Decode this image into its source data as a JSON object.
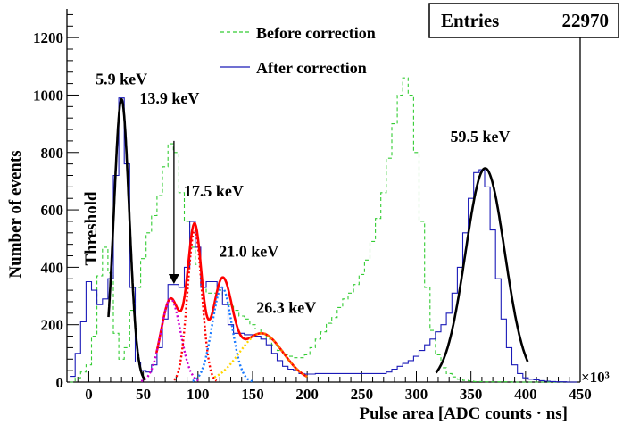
{
  "chart_data": {
    "type": "line",
    "title": "",
    "xlabel": "Pulse area [ADC counts · ns]",
    "ylabel": "Number of events",
    "x_multiplier": "×10³",
    "xlim": [
      -20,
      450
    ],
    "ylim": [
      0,
      1300
    ],
    "xticks": [
      0,
      50,
      100,
      150,
      200,
      250,
      300,
      350,
      400,
      450
    ],
    "yticks": [
      0,
      200,
      400,
      600,
      800,
      1000,
      1200
    ],
    "stats": {
      "label": "Entries",
      "value": "22970"
    },
    "legend": [
      {
        "name": "Before correction",
        "style": "dashed",
        "color": "#33cc33"
      },
      {
        "name": "After correction",
        "style": "solid",
        "color": "#1a1ab8"
      }
    ],
    "threshold_label": "Threshold",
    "annotations": [
      {
        "text": "5.9 keV",
        "x": 30,
        "y": 1000
      },
      {
        "text": "13.9 keV",
        "x": 78,
        "y": 830
      },
      {
        "text": "17.5 keV",
        "x": 98,
        "y": 610
      },
      {
        "text": "21.0 keV",
        "x": 122,
        "y": 400
      },
      {
        "text": "26.3 keV",
        "x": 158,
        "y": 210
      },
      {
        "text": "59.5 keV",
        "x": 365,
        "y": 800
      }
    ],
    "series": [
      {
        "name": "Before correction",
        "x": [
          -15,
          -10,
          -5,
          0,
          5,
          10,
          15,
          20,
          25,
          30,
          35,
          40,
          45,
          50,
          55,
          60,
          65,
          70,
          75,
          80,
          85,
          90,
          95,
          100,
          105,
          110,
          115,
          120,
          125,
          130,
          135,
          140,
          145,
          150,
          155,
          160,
          165,
          170,
          175,
          180,
          185,
          190,
          195,
          200,
          205,
          210,
          215,
          220,
          225,
          230,
          235,
          240,
          245,
          250,
          255,
          260,
          265,
          270,
          275,
          280,
          285,
          290,
          295,
          300,
          305,
          310,
          315,
          320,
          325,
          330,
          335,
          340,
          345,
          350,
          355,
          360,
          365,
          370,
          375,
          380,
          385,
          390,
          395,
          400,
          405,
          410,
          415,
          420,
          425,
          430,
          435,
          440,
          445
        ],
        "values": [
          0,
          15,
          35,
          60,
          160,
          370,
          470,
          380,
          170,
          80,
          120,
          250,
          330,
          430,
          520,
          580,
          650,
          750,
          830,
          800,
          660,
          560,
          470,
          410,
          330,
          310,
          310,
          320,
          300,
          270,
          250,
          230,
          220,
          200,
          185,
          170,
          150,
          130,
          110,
          95,
          90,
          85,
          85,
          95,
          120,
          150,
          175,
          205,
          225,
          260,
          290,
          310,
          340,
          375,
          425,
          490,
          570,
          660,
          780,
          900,
          1000,
          1060,
          1000,
          800,
          560,
          330,
          180,
          95,
          50,
          30,
          18,
          10,
          6,
          4,
          2,
          2,
          1,
          1,
          1,
          1,
          1,
          0,
          0,
          0,
          0,
          0,
          0,
          0,
          0,
          0,
          0,
          0,
          0
        ]
      },
      {
        "name": "After correction",
        "x": [
          -15,
          -10,
          -5,
          0,
          5,
          10,
          15,
          20,
          25,
          30,
          35,
          40,
          45,
          50,
          55,
          60,
          65,
          70,
          75,
          80,
          85,
          90,
          95,
          100,
          105,
          110,
          115,
          120,
          125,
          130,
          135,
          140,
          145,
          150,
          155,
          160,
          165,
          170,
          175,
          180,
          185,
          190,
          195,
          200,
          205,
          210,
          215,
          220,
          225,
          230,
          235,
          240,
          245,
          250,
          255,
          260,
          265,
          270,
          275,
          280,
          285,
          290,
          295,
          300,
          305,
          310,
          315,
          320,
          325,
          330,
          335,
          340,
          345,
          350,
          355,
          360,
          365,
          370,
          375,
          380,
          385,
          390,
          395,
          400,
          405,
          410,
          415,
          420,
          425,
          430,
          435,
          440,
          445
        ],
        "values": [
          20,
          100,
          210,
          350,
          320,
          270,
          290,
          360,
          720,
          990,
          760,
          330,
          70,
          40,
          35,
          60,
          120,
          220,
          340,
          340,
          330,
          400,
          560,
          470,
          330,
          350,
          350,
          330,
          270,
          200,
          170,
          170,
          165,
          165,
          160,
          150,
          130,
          100,
          75,
          55,
          45,
          40,
          30,
          28,
          28,
          30,
          30,
          30,
          30,
          30,
          30,
          30,
          30,
          30,
          30,
          30,
          30,
          30,
          35,
          45,
          55,
          65,
          75,
          90,
          110,
          130,
          150,
          175,
          200,
          240,
          310,
          400,
          520,
          640,
          730,
          740,
          680,
          530,
          360,
          220,
          120,
          60,
          30,
          15,
          10,
          8,
          5,
          3,
          2,
          1,
          1,
          0,
          0
        ]
      }
    ],
    "fits": [
      {
        "name": "Total fit 5.9 keV",
        "color": "#000000",
        "style": "solid",
        "components": [
          {
            "amp": 985,
            "mean": 30,
            "sigma": 7
          }
        ],
        "range": [
          18,
          52
        ]
      },
      {
        "name": "Total fit 59.5 keV",
        "color": "#000000",
        "style": "solid",
        "components": [
          {
            "amp": 745,
            "mean": 363,
            "sigma": 18
          }
        ],
        "range": [
          318,
          402
        ]
      },
      {
        "name": "Total fit 13.9-26.3 keV",
        "color": "#ff0000",
        "style": "solid",
        "components": [
          {
            "amp": 290,
            "mean": 75,
            "sigma": 9
          },
          {
            "amp": 530,
            "mean": 97,
            "sigma": 6.5
          },
          {
            "amp": 330,
            "mean": 122,
            "sigma": 9
          },
          {
            "amp": 170,
            "mean": 158,
            "sigma": 20
          }
        ],
        "range": [
          62,
          200
        ]
      },
      {
        "name": "Component 13.9 keV",
        "color": "#cc00cc",
        "style": "dotted",
        "components": [
          {
            "amp": 290,
            "mean": 75,
            "sigma": 9
          }
        ],
        "range": [
          48,
          102
        ]
      },
      {
        "name": "Component 17.5 keV",
        "color": "#ff0000",
        "style": "dotted",
        "components": [
          {
            "amp": 530,
            "mean": 97,
            "sigma": 6.5
          }
        ],
        "range": [
          78,
          117
        ]
      },
      {
        "name": "Component 21.0 keV",
        "color": "#1a7aff",
        "style": "dotted",
        "components": [
          {
            "amp": 330,
            "mean": 122,
            "sigma": 9
          }
        ],
        "range": [
          95,
          150
        ]
      },
      {
        "name": "Component 26.3 keV",
        "color": "#ffd500",
        "style": "dotted",
        "components": [
          {
            "amp": 170,
            "mean": 158,
            "sigma": 20
          }
        ],
        "range": [
          115,
          200
        ]
      },
      {
        "name": "Component 26.3 keV outline",
        "color": "#ff6600",
        "style": "dotted",
        "components": [
          {
            "amp": 170,
            "mean": 158,
            "sigma": 20
          }
        ],
        "range": [
          150,
          200
        ]
      }
    ]
  }
}
